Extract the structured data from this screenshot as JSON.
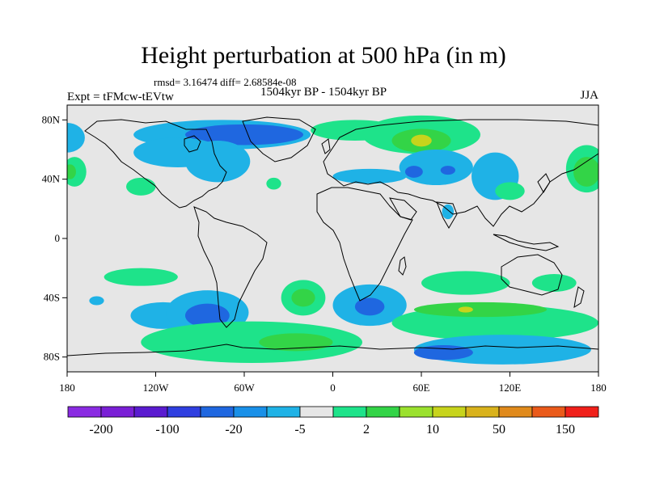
{
  "figure": {
    "title": "Height perturbation at 500 hPa (in m)",
    "stats": "rmsd= 3.16474 diff= 2.68584e-08",
    "left_label": "Expt = tFMcw-tEVtw",
    "center_label": "1504kyr BP - 1504kyr BP",
    "right_label": "JJA"
  },
  "map": {
    "lon_range": [
      -180,
      180
    ],
    "lat_range": [
      -90,
      90
    ],
    "lat_ticks": [
      {
        "value": 80,
        "label": "80N"
      },
      {
        "value": 40,
        "label": "40N"
      },
      {
        "value": 0,
        "label": "0"
      },
      {
        "value": -40,
        "label": "40S"
      },
      {
        "value": -80,
        "label": "80S"
      }
    ],
    "lon_ticks": [
      {
        "value": -180,
        "label": "180"
      },
      {
        "value": -120,
        "label": "120W"
      },
      {
        "value": -60,
        "label": "60W"
      },
      {
        "value": 0,
        "label": "0"
      },
      {
        "value": 60,
        "label": "60E"
      },
      {
        "value": 120,
        "label": "120E"
      },
      {
        "value": 180,
        "label": "180"
      }
    ],
    "background_color": "#e6e6e6",
    "coastline_color": "#000000"
  },
  "colorbar": {
    "colors": [
      "#8a2be2",
      "#7a1fd6",
      "#5a1bd0",
      "#2f3fe0",
      "#1f67e0",
      "#1990e8",
      "#1fb2e6",
      "#e6e6e6",
      "#1ee38a",
      "#33d447",
      "#9be12e",
      "#c7d41c",
      "#d9b21c",
      "#e08a1c",
      "#ea5a1a",
      "#f0201a"
    ],
    "labels": [
      "-200",
      "-100",
      "-20",
      "-5",
      "2",
      "10",
      "50",
      "150"
    ]
  },
  "chart_data": {
    "type": "contour_map",
    "variable": "Height perturbation at 500 hPa",
    "units": "m",
    "season": "JJA",
    "blobs": [
      {
        "lon": -75,
        "lat": 70,
        "rx": 60,
        "ry": 10,
        "level": -5
      },
      {
        "lon": -60,
        "lat": 70,
        "rx": 40,
        "ry": 7,
        "level": -20
      },
      {
        "lon": -105,
        "lat": 58,
        "rx": 30,
        "ry": 10,
        "level": -5
      },
      {
        "lon": -78,
        "lat": 52,
        "rx": 22,
        "ry": 14,
        "level": -5
      },
      {
        "lon": -180,
        "lat": 68,
        "rx": 12,
        "ry": 10,
        "level": -5
      },
      {
        "lon": -175,
        "lat": 45,
        "rx": 8,
        "ry": 10,
        "level": 2
      },
      {
        "lon": -178,
        "lat": 45,
        "rx": 4,
        "ry": 5,
        "level": 10
      },
      {
        "lon": -130,
        "lat": 35,
        "rx": 10,
        "ry": 6,
        "level": 2
      },
      {
        "lon": -40,
        "lat": 37,
        "rx": 5,
        "ry": 4,
        "level": 2
      },
      {
        "lon": 15,
        "lat": 73,
        "rx": 30,
        "ry": 7,
        "level": 2
      },
      {
        "lon": 60,
        "lat": 70,
        "rx": 40,
        "ry": 13,
        "level": 2
      },
      {
        "lon": 60,
        "lat": 66,
        "rx": 20,
        "ry": 8,
        "level": 10
      },
      {
        "lon": 60,
        "lat": 66,
        "rx": 7,
        "ry": 4,
        "level": 50
      },
      {
        "lon": 25,
        "lat": 42,
        "rx": 25,
        "ry": 5,
        "level": -5
      },
      {
        "lon": 70,
        "lat": 48,
        "rx": 25,
        "ry": 12,
        "level": -5
      },
      {
        "lon": 55,
        "lat": 45,
        "rx": 6,
        "ry": 4,
        "level": -20
      },
      {
        "lon": 78,
        "lat": 46,
        "rx": 5,
        "ry": 3,
        "level": -20
      },
      {
        "lon": 110,
        "lat": 42,
        "rx": 16,
        "ry": 16,
        "level": -5
      },
      {
        "lon": 120,
        "lat": 32,
        "rx": 10,
        "ry": 6,
        "level": 2
      },
      {
        "lon": 172,
        "lat": 47,
        "rx": 14,
        "ry": 16,
        "level": 2
      },
      {
        "lon": 172,
        "lat": 45,
        "rx": 9,
        "ry": 10,
        "level": 10
      },
      {
        "lon": 78,
        "lat": 18,
        "rx": 4,
        "ry": 5,
        "level": -5
      },
      {
        "lon": -130,
        "lat": -26,
        "rx": 25,
        "ry": 6,
        "level": 2
      },
      {
        "lon": -160,
        "lat": -42,
        "rx": 5,
        "ry": 3,
        "level": -5
      },
      {
        "lon": -115,
        "lat": -52,
        "rx": 22,
        "ry": 9,
        "level": -5
      },
      {
        "lon": -85,
        "lat": -50,
        "rx": 28,
        "ry": 15,
        "level": -5
      },
      {
        "lon": -85,
        "lat": -52,
        "rx": 15,
        "ry": 8,
        "level": -20
      },
      {
        "lon": -20,
        "lat": -40,
        "rx": 15,
        "ry": 12,
        "level": 2
      },
      {
        "lon": -20,
        "lat": -40,
        "rx": 8,
        "ry": 6,
        "level": 10
      },
      {
        "lon": 25,
        "lat": -45,
        "rx": 25,
        "ry": 14,
        "level": -5
      },
      {
        "lon": 25,
        "lat": -46,
        "rx": 10,
        "ry": 6,
        "level": -20
      },
      {
        "lon": -55,
        "lat": -70,
        "rx": 75,
        "ry": 14,
        "level": 2
      },
      {
        "lon": -25,
        "lat": -70,
        "rx": 25,
        "ry": 6,
        "level": 10
      },
      {
        "lon": 90,
        "lat": -30,
        "rx": 30,
        "ry": 8,
        "level": 2
      },
      {
        "lon": 150,
        "lat": -30,
        "rx": 15,
        "ry": 6,
        "level": 2
      },
      {
        "lon": 110,
        "lat": -57,
        "rx": 70,
        "ry": 12,
        "level": 2
      },
      {
        "lon": 100,
        "lat": -48,
        "rx": 45,
        "ry": 5,
        "level": 10
      },
      {
        "lon": 90,
        "lat": -48,
        "rx": 5,
        "ry": 2,
        "level": 50
      },
      {
        "lon": 115,
        "lat": -75,
        "rx": 60,
        "ry": 10,
        "level": -5
      },
      {
        "lon": 75,
        "lat": -77,
        "rx": 20,
        "ry": 5,
        "level": -20
      }
    ]
  }
}
